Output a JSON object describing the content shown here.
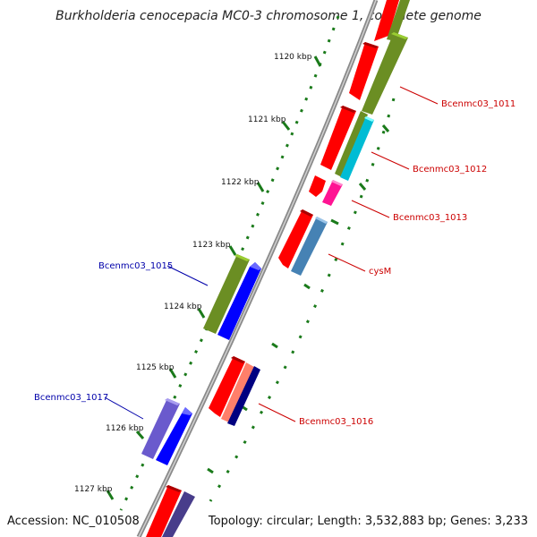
{
  "title": "Burkholderia cenocepacia MC0-3 chromosome 1, complete genome",
  "accession": "Accession: NC_010508",
  "topology": "Topology: circular; Length: 3,532,883 bp; Genes: 3,233",
  "ruler": [
    "1120 kbp",
    "1121 kbp",
    "1122 kbp",
    "1123 kbp",
    "1124 kbp",
    "1125 kbp",
    "1126 kbp",
    "1127 kbp"
  ],
  "gene_labels": {
    "g1011": "Bcenmc03_1011",
    "g1012": "Bcenmc03_1012",
    "g1013": "Bcenmc03_1013",
    "cysM": "cysM",
    "g1015": "Bcenmc03_1015",
    "g1016": "Bcenmc03_1016",
    "g1017": "Bcenmc03_1017"
  },
  "colors": {
    "label_forward": "#cc0000",
    "label_reverse": "#0000aa",
    "ruler_tick": "#1a7a1a",
    "backbone": "#8a8a8a",
    "cds_red": "#ff0000",
    "olive": "#6b8e23",
    "cyan": "#00bcd4",
    "magenta": "#ff1493",
    "steelblue": "#4682b4",
    "blue": "#0000ff",
    "salmon": "#ff7f6a",
    "navy": "#000080",
    "slateblue": "#6a5acd",
    "darkslate": "#483d8b"
  }
}
